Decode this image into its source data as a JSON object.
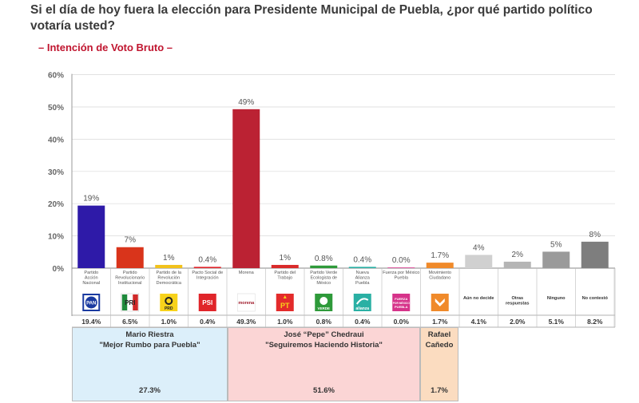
{
  "title": "Si el día de hoy fuera la elección para Presidente Municipal de Puebla, ¿por qué partido político votaría usted?",
  "subtitle": "– Intención de Voto Bruto –",
  "chart_data": {
    "type": "bar",
    "ylim": [
      0,
      60
    ],
    "y_ticks": [
      "0%",
      "10%",
      "20%",
      "30%",
      "40%",
      "50%",
      "60%"
    ],
    "grid": true,
    "bars": [
      {
        "name": "Partido Acción Nacional",
        "name_lines": [
          "Partido",
          "Acción",
          "Nacional"
        ],
        "value": 19.4,
        "value_label": "19%",
        "pct": "19.4%",
        "color": "#2e1aa8",
        "logo": "PAN",
        "logo_kind": "pan"
      },
      {
        "name": "Partido Revolucionario Institucional",
        "name_lines": [
          "Partido",
          "Revolucionario",
          "Institucional"
        ],
        "value": 6.5,
        "value_label": "7%",
        "pct": "6.5%",
        "color": "#d9341b",
        "logo": "PRI",
        "logo_kind": "pri"
      },
      {
        "name": "Partido de la Revolución Democrática",
        "name_lines": [
          "Partido de la",
          "Revolución",
          "Democrática"
        ],
        "value": 1.0,
        "value_label": "1%",
        "pct": "1.0%",
        "color": "#f2c21b",
        "logo": "PRD",
        "logo_kind": "prd"
      },
      {
        "name": "Pacto Social de Integración",
        "name_lines": [
          "Pacto Social de",
          "Integración"
        ],
        "value": 0.4,
        "value_label": "0.4%",
        "pct": "0.4%",
        "color": "#e0252a",
        "logo": "PSI",
        "logo_kind": "psi"
      },
      {
        "name": "Morena",
        "name_lines": [
          "Morena"
        ],
        "value": 49.3,
        "value_label": "49%",
        "pct": "49.3%",
        "color": "#bb2233",
        "logo": "morena",
        "logo_kind": "morena"
      },
      {
        "name": "Partido del Trabajo",
        "name_lines": [
          "Partido del",
          "Trabajo"
        ],
        "value": 1.0,
        "value_label": "1%",
        "pct": "1.0%",
        "color": "#d92a2a",
        "logo": "PT",
        "logo_kind": "pt"
      },
      {
        "name": "Partido Verde Ecologista de México",
        "name_lines": [
          "Partido Verde",
          "Ecologista de",
          "México"
        ],
        "value": 0.8,
        "value_label": "0.8%",
        "pct": "0.8%",
        "color": "#2e9a3a",
        "logo": "VERDE",
        "logo_kind": "verde"
      },
      {
        "name": "Nueva Alianza Puebla",
        "name_lines": [
          "Nueva",
          "Alianza",
          "Puebla"
        ],
        "value": 0.4,
        "value_label": "0.4%",
        "pct": "0.4%",
        "color": "#2ab0a4",
        "logo": "alianza",
        "logo_kind": "alianza"
      },
      {
        "name": "Fuerza por México Puebla",
        "name_lines": [
          "Fuerza por México",
          "Puebla"
        ],
        "value": 0.0,
        "value_label": "0.0%",
        "pct": "0.0%",
        "color": "#d6338a",
        "logo": "FUERZA POR MÉXICO PUEBLA",
        "logo_kind": "fuerza"
      },
      {
        "name": "Movimiento Ciudadano",
        "name_lines": [
          "Movimiento",
          "Ciudadano"
        ],
        "value": 1.7,
        "value_label": "1.7%",
        "pct": "1.7%",
        "color": "#f08a2a",
        "logo": "MC",
        "logo_kind": "mc"
      },
      {
        "name": "Aún no decide",
        "name_lines": [
          "Aún no decide"
        ],
        "value": 4.1,
        "value_label": "4%",
        "pct": "4.1%",
        "color": "#d0d0d0",
        "logo": "",
        "logo_kind": "none",
        "bold_name": true
      },
      {
        "name": "Otras respuestas",
        "name_lines": [
          "Otras",
          "respuestas"
        ],
        "value": 2.0,
        "value_label": "2%",
        "pct": "2.0%",
        "color": "#b5b5b5",
        "logo": "",
        "logo_kind": "none",
        "bold_name": true
      },
      {
        "name": "Ninguno",
        "name_lines": [
          "Ninguno"
        ],
        "value": 5.1,
        "value_label": "5%",
        "pct": "5.1%",
        "color": "#9a9a9a",
        "logo": "",
        "logo_kind": "none",
        "bold_name": true
      },
      {
        "name": "No contestó",
        "name_lines": [
          "No contestó"
        ],
        "value": 8.2,
        "value_label": "8%",
        "pct": "8.2%",
        "color": "#7e7e7e",
        "logo": "",
        "logo_kind": "none",
        "bold_name": true
      }
    ]
  },
  "candidates": [
    {
      "name": "Mario Riestra",
      "slogan": "\"Mejor Rumbo para Puebla\"",
      "pct": "27.3%",
      "color": "#dceffa"
    },
    {
      "name": "José “Pepe” Chedraui",
      "slogan": "\"Seguiremos Haciendo Historia\"",
      "pct": "51.6%",
      "color": "#fbd5d5"
    },
    {
      "name": "Rafael",
      "name2": "Cañedo",
      "pct": "1.7%",
      "color": "#fbdcc0"
    }
  ]
}
